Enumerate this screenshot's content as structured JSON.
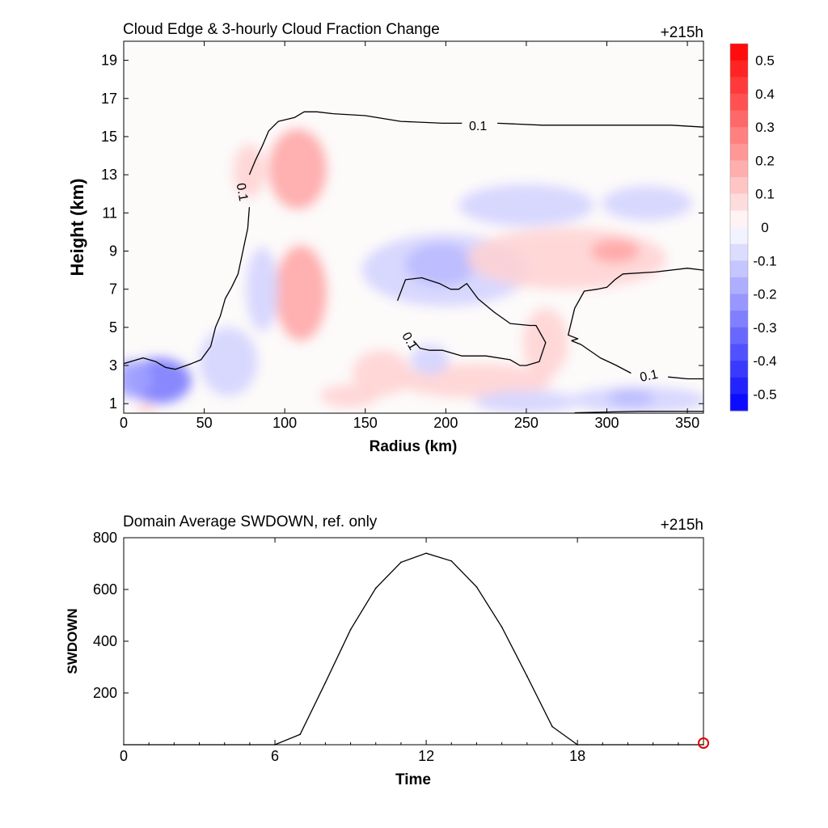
{
  "chart_data": [
    {
      "type": "heatmap",
      "title": "Cloud Edge & 3-hourly Cloud Fraction Change",
      "time_label": "+215h",
      "xlabel": "Radius (km)",
      "ylabel": "Height (km)",
      "xlim": [
        0,
        360
      ],
      "ylim": [
        0.5,
        20
      ],
      "x_ticks": [
        0,
        50,
        100,
        150,
        200,
        250,
        300,
        350
      ],
      "y_ticks": [
        1,
        3,
        5,
        7,
        9,
        11,
        13,
        15,
        17,
        19
      ],
      "colorbar": {
        "ticks": [
          0.5,
          0.4,
          0.3,
          0.2,
          0.1,
          0,
          -0.1,
          -0.2,
          -0.3,
          -0.4,
          -0.5
        ],
        "range": [
          -0.55,
          0.55
        ],
        "positive_color": "#ff0000",
        "negative_color": "#0000ff",
        "zero_color": "#ffffff"
      },
      "contour_level": "0.1",
      "contour_labels": [
        {
          "x": 74,
          "y": 12.1,
          "text": "0.1",
          "angle": 80
        },
        {
          "x": 220,
          "y": 15.6,
          "text": "0.1",
          "angle": 0
        },
        {
          "x": 178,
          "y": 4.3,
          "text": "0.1",
          "angle": 60
        },
        {
          "x": 326,
          "y": 2.5,
          "text": "0.1",
          "angle": -12
        }
      ],
      "contours": [
        [
          [
            0,
            3.1
          ],
          [
            12,
            3.4
          ],
          [
            20,
            3.2
          ],
          [
            26,
            2.9
          ],
          [
            32,
            2.8
          ],
          [
            42,
            3.1
          ],
          [
            48,
            3.3
          ],
          [
            54,
            4.0
          ],
          [
            57,
            5.0
          ],
          [
            60,
            5.6
          ],
          [
            63,
            6.5
          ],
          [
            67,
            7.1
          ],
          [
            71,
            7.8
          ],
          [
            74,
            9.0
          ],
          [
            77,
            10.2
          ],
          [
            78,
            11.3
          ]
        ],
        [
          [
            78,
            13.0
          ],
          [
            82,
            13.8
          ],
          [
            86,
            14.5
          ],
          [
            90,
            15.3
          ],
          [
            96,
            15.8
          ],
          [
            106,
            16.0
          ],
          [
            112,
            16.3
          ],
          [
            120,
            16.3
          ],
          [
            130,
            16.2
          ],
          [
            150,
            16.1
          ],
          [
            172,
            15.8
          ],
          [
            198,
            15.7
          ],
          [
            210,
            15.7
          ]
        ],
        [
          [
            232,
            15.7
          ],
          [
            260,
            15.6
          ],
          [
            300,
            15.6
          ],
          [
            340,
            15.6
          ],
          [
            360,
            15.5
          ]
        ],
        [
          [
            170,
            6.4
          ],
          [
            175,
            7.5
          ],
          [
            185,
            7.6
          ],
          [
            196,
            7.3
          ],
          [
            203,
            7.0
          ],
          [
            208,
            7.0
          ],
          [
            213,
            7.3
          ],
          [
            220,
            6.5
          ],
          [
            230,
            5.8
          ],
          [
            240,
            5.2
          ],
          [
            252,
            5.1
          ],
          [
            256,
            5.1
          ],
          [
            262,
            4.2
          ],
          [
            258,
            3.2
          ],
          [
            250,
            3.0
          ],
          [
            246,
            3.0
          ],
          [
            240,
            3.3
          ],
          [
            225,
            3.5
          ],
          [
            210,
            3.5
          ],
          [
            198,
            3.8
          ],
          [
            190,
            3.8
          ],
          [
            184,
            3.9
          ],
          [
            180,
            4.3
          ]
        ],
        [
          [
            278,
            4.3
          ],
          [
            282,
            4.4
          ],
          [
            276,
            4.6
          ],
          [
            280,
            6.0
          ],
          [
            286,
            6.9
          ],
          [
            294,
            7.0
          ],
          [
            300,
            7.1
          ],
          [
            305,
            7.5
          ],
          [
            310,
            7.8
          ],
          [
            330,
            7.9
          ],
          [
            350,
            8.1
          ],
          [
            360,
            8.0
          ]
        ],
        [
          [
            315,
            2.6
          ],
          [
            306,
            3.0
          ],
          [
            296,
            3.4
          ],
          [
            284,
            4.1
          ],
          [
            278,
            4.3
          ]
        ],
        [
          [
            338,
            2.4
          ],
          [
            350,
            2.3
          ],
          [
            360,
            2.3
          ]
        ],
        [
          [
            280,
            0.52
          ],
          [
            320,
            0.6
          ],
          [
            360,
            0.6
          ]
        ]
      ],
      "anomalies": [
        {
          "x": 22,
          "y": 2.2,
          "rx": 20,
          "ry": 1.2,
          "value": -0.3
        },
        {
          "x": 5,
          "y": 2.3,
          "rx": 12,
          "ry": 1.0,
          "value": -0.2
        },
        {
          "x": 108,
          "y": 13.3,
          "rx": 18,
          "ry": 2.1,
          "value": 0.2
        },
        {
          "x": 78,
          "y": 13.2,
          "rx": 10,
          "ry": 1.4,
          "value": 0.1
        },
        {
          "x": 110,
          "y": 6.8,
          "rx": 16,
          "ry": 2.5,
          "value": 0.2
        },
        {
          "x": 86,
          "y": 7.0,
          "rx": 10,
          "ry": 2.2,
          "value": -0.1
        },
        {
          "x": 65,
          "y": 3.2,
          "rx": 18,
          "ry": 1.8,
          "value": -0.1
        },
        {
          "x": 200,
          "y": 8.0,
          "rx": 52,
          "ry": 1.9,
          "value": -0.1
        },
        {
          "x": 197,
          "y": 8.3,
          "rx": 22,
          "ry": 1.1,
          "value": -0.15
        },
        {
          "x": 250,
          "y": 11.4,
          "rx": 42,
          "ry": 1.1,
          "value": -0.1
        },
        {
          "x": 325,
          "y": 11.5,
          "rx": 28,
          "ry": 0.9,
          "value": -0.1
        },
        {
          "x": 275,
          "y": 8.6,
          "rx": 62,
          "ry": 1.6,
          "value": 0.1
        },
        {
          "x": 305,
          "y": 9.0,
          "rx": 15,
          "ry": 0.6,
          "value": 0.2
        },
        {
          "x": 160,
          "y": 2.6,
          "rx": 18,
          "ry": 1.2,
          "value": 0.1
        },
        {
          "x": 218,
          "y": 2.2,
          "rx": 48,
          "ry": 0.9,
          "value": 0.1
        },
        {
          "x": 262,
          "y": 4.2,
          "rx": 14,
          "ry": 1.8,
          "value": 0.1
        },
        {
          "x": 320,
          "y": 1.2,
          "rx": 42,
          "ry": 0.7,
          "value": -0.1
        },
        {
          "x": 315,
          "y": 1.3,
          "rx": 14,
          "ry": 0.45,
          "value": -0.15
        },
        {
          "x": 250,
          "y": 1.1,
          "rx": 32,
          "ry": 0.6,
          "value": -0.1
        },
        {
          "x": 140,
          "y": 1.4,
          "rx": 18,
          "ry": 0.6,
          "value": 0.1
        },
        {
          "x": 190,
          "y": 3.3,
          "rx": 12,
          "ry": 0.8,
          "value": -0.1
        },
        {
          "x": 14,
          "y": 0.7,
          "rx": 6,
          "ry": 0.3,
          "value": 0.1
        }
      ]
    },
    {
      "type": "line",
      "title": "Domain Average SWDOWN, ref. only",
      "time_label": "+215h",
      "xlabel": "Time",
      "ylabel": "SWDOWN",
      "xlim": [
        0,
        23
      ],
      "ylim": [
        0,
        800
      ],
      "x_ticks": [
        0,
        6,
        12,
        18
      ],
      "y_ticks": [
        200,
        400,
        600,
        800
      ],
      "series_color": "#000000",
      "marker": {
        "x": 23,
        "y": 0,
        "color": "#e00000"
      },
      "x": [
        0,
        1,
        2,
        3,
        4,
        5,
        6,
        7,
        8,
        9,
        10,
        11,
        12,
        13,
        14,
        15,
        16,
        17,
        18,
        19,
        20,
        21,
        22,
        23
      ],
      "y": [
        0,
        0,
        0,
        0,
        0,
        0,
        0,
        40,
        240,
        445,
        605,
        705,
        740,
        710,
        610,
        455,
        265,
        70,
        0,
        0,
        0,
        0,
        0,
        0
      ]
    }
  ]
}
